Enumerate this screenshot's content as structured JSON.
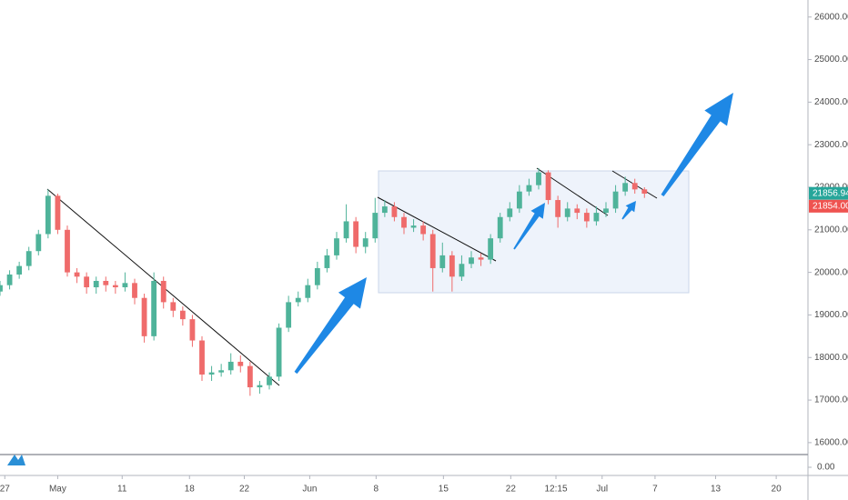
{
  "chart_data": {
    "type": "candlestick",
    "x": [
      0,
      1,
      2,
      3,
      4,
      5,
      6,
      7,
      8,
      9,
      10,
      11,
      12,
      13,
      14,
      15,
      16,
      17,
      18,
      19,
      20,
      21,
      22,
      23,
      24,
      25,
      26,
      27,
      28,
      29,
      30,
      31,
      32,
      33,
      34,
      35,
      36,
      37,
      38,
      39,
      40,
      41,
      42,
      43,
      44,
      45,
      46,
      47,
      48,
      49,
      50,
      51,
      52,
      53,
      54,
      55,
      56,
      57,
      58,
      59,
      60,
      61,
      62,
      63,
      64,
      65,
      66,
      67
    ],
    "open": [
      19550,
      19700,
      19950,
      20150,
      20500,
      20900,
      21800,
      21000,
      20000,
      19900,
      19650,
      19800,
      19700,
      19650,
      19750,
      19400,
      18500,
      19800,
      19300,
      19100,
      18900,
      18400,
      17600,
      17650,
      17700,
      17900,
      17800,
      17300,
      17350,
      17550,
      18700,
      19300,
      19400,
      19700,
      20100,
      20400,
      20800,
      21200,
      20600,
      20800,
      21400,
      21550,
      21300,
      21050,
      21100,
      20900,
      20100,
      20400,
      19900,
      20200,
      20350,
      20300,
      20800,
      21300,
      21500,
      21900,
      22050,
      22350,
      21700,
      21300,
      21500,
      21400,
      21200,
      21400,
      21500,
      21900,
      22100,
      21950
    ],
    "high": [
      19800,
      20050,
      20250,
      20600,
      21000,
      21950,
      21850,
      21100,
      20100,
      20000,
      19900,
      19900,
      19800,
      20000,
      19850,
      19500,
      20000,
      19900,
      19400,
      19200,
      19000,
      18500,
      17800,
      17850,
      18100,
      18050,
      17900,
      17450,
      17650,
      18800,
      19450,
      19550,
      19850,
      20250,
      20550,
      20950,
      21600,
      21300,
      20950,
      21750,
      21700,
      21650,
      21400,
      21250,
      21200,
      21000,
      20700,
      20500,
      20400,
      20500,
      20450,
      20900,
      21400,
      21650,
      22050,
      22200,
      22450,
      22400,
      21800,
      21650,
      21600,
      21500,
      21550,
      21650,
      22050,
      22250,
      22200,
      22000
    ],
    "low": [
      19450,
      19600,
      19850,
      20050,
      20400,
      20800,
      20900,
      19900,
      19750,
      19500,
      19500,
      19550,
      19500,
      19550,
      19250,
      18350,
      18400,
      19150,
      18950,
      18750,
      18250,
      17450,
      17450,
      17550,
      17600,
      17650,
      17100,
      17150,
      17250,
      17450,
      18600,
      19200,
      19300,
      19600,
      20000,
      20300,
      20700,
      20450,
      20450,
      20700,
      21300,
      21200,
      20900,
      20950,
      20750,
      19550,
      20000,
      19550,
      19800,
      20100,
      20150,
      20200,
      20700,
      21200,
      21400,
      21800,
      21950,
      21600,
      21050,
      21200,
      21250,
      21050,
      21100,
      21300,
      21400,
      21800,
      21850,
      21750
    ],
    "close": [
      19700,
      19950,
      20150,
      20500,
      20900,
      21800,
      21000,
      20000,
      19900,
      19650,
      19800,
      19700,
      19650,
      19750,
      19400,
      18500,
      19800,
      19300,
      19100,
      18900,
      18400,
      17600,
      17650,
      17700,
      17900,
      17800,
      17300,
      17350,
      17550,
      18700,
      19300,
      19400,
      19700,
      20100,
      20400,
      20800,
      21200,
      20600,
      20800,
      21400,
      21550,
      21300,
      21050,
      21100,
      20900,
      20100,
      20400,
      19900,
      20200,
      20350,
      20300,
      20800,
      21300,
      21500,
      21900,
      22050,
      22350,
      21700,
      21300,
      21500,
      21400,
      21200,
      21400,
      21500,
      21900,
      22100,
      21950,
      21850
    ],
    "up_color": "#4fb39a",
    "down_color": "#ef6b6b",
    "xlim": [
      0,
      84
    ],
    "xticks": [
      {
        "value": 0.5,
        "label": "27"
      },
      {
        "value": 6,
        "label": "May"
      },
      {
        "value": 12.7,
        "label": "11"
      },
      {
        "value": 19.7,
        "label": "18"
      },
      {
        "value": 25.4,
        "label": "22"
      },
      {
        "value": 32.2,
        "label": "Jun"
      },
      {
        "value": 39.1,
        "label": "8"
      },
      {
        "value": 46.1,
        "label": "15"
      },
      {
        "value": 53.1,
        "label": "22"
      },
      {
        "value": 57.8,
        "label": "12:15"
      },
      {
        "value": 62.6,
        "label": "Jul"
      },
      {
        "value": 68.1,
        "label": "7"
      },
      {
        "value": 74.4,
        "label": "13"
      },
      {
        "value": 80.7,
        "label": "20"
      }
    ],
    "ylim": [
      15720,
      26400
    ],
    "yticks": [
      {
        "value": 16000,
        "label": "16000.00"
      },
      {
        "value": 17000,
        "label": "17000.00"
      },
      {
        "value": 18000,
        "label": "18000.00"
      },
      {
        "value": 19000,
        "label": "19000.00"
      },
      {
        "value": 20000,
        "label": "20000.00"
      },
      {
        "value": 21000,
        "label": "21000.00"
      },
      {
        "value": 22000,
        "label": "22000.00"
      },
      {
        "value": 23000,
        "label": "23000.00"
      },
      {
        "value": 24000,
        "label": "24000.00"
      },
      {
        "value": 25000,
        "label": "25000.00"
      },
      {
        "value": 26000,
        "label": "26000.00"
      }
    ],
    "last_price": 21856.94,
    "prev_price": {
      "value": 21854,
      "label": "21854.00"
    },
    "lower_pane_ticks": [
      {
        "value": 0,
        "label": "0.00"
      }
    ]
  }
}
